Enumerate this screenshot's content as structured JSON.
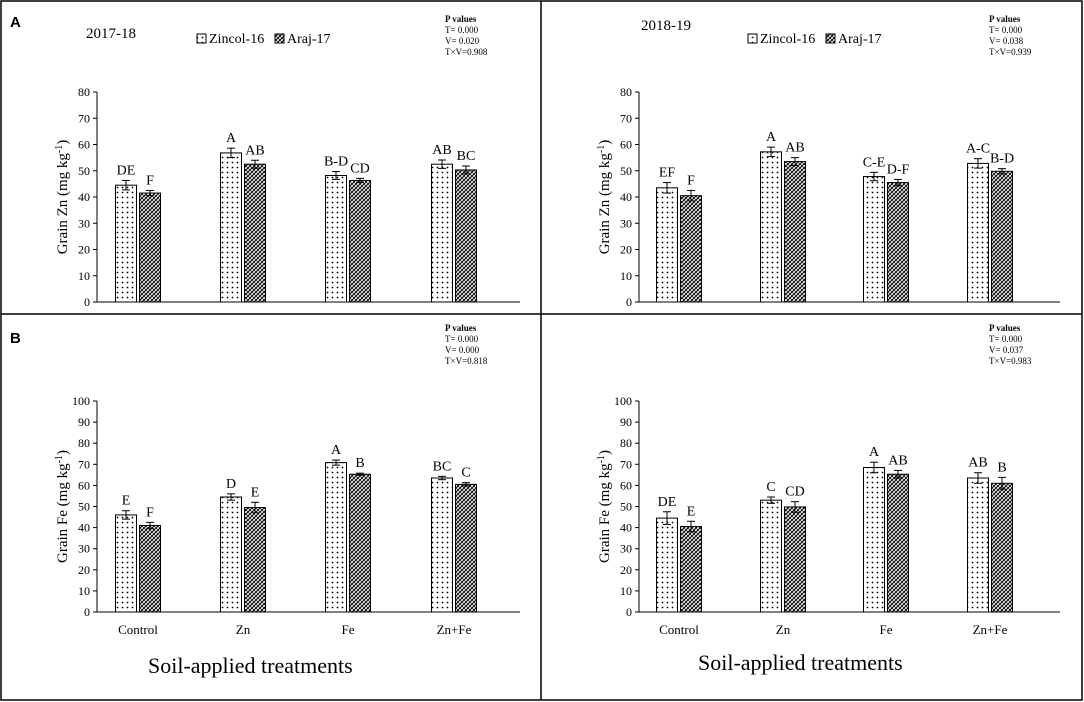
{
  "figure": {
    "row_labels": [
      "A",
      "B"
    ],
    "x_axis_title": "Soil-applied treatments",
    "legend": [
      "Zincol-16",
      "Araj-17"
    ],
    "p_values_heading": "P values",
    "colors": {
      "frame": "#000000",
      "bar_fill": "#ffffff",
      "dots": "#000000",
      "hatch": "#000000"
    }
  },
  "chart_data": [
    {
      "id": "zn-2017",
      "type": "bar",
      "title": "2017-18",
      "xlabel": "",
      "ylabel": "Grain Zn (mg kg-1)",
      "ylim": [
        0,
        80
      ],
      "ytick_step": 10,
      "categories": [
        "Control",
        "Zn",
        "Fe",
        "Zn+Fe"
      ],
      "series": [
        {
          "name": "Zincol-16",
          "values": [
            44.5,
            56.8,
            48.2,
            52.5
          ],
          "errors": [
            1.8,
            1.8,
            1.5,
            1.6
          ],
          "letters": [
            "DE",
            "A",
            "B-D",
            "AB"
          ]
        },
        {
          "name": "Araj-17",
          "values": [
            41.5,
            52.5,
            46.3,
            50.3
          ],
          "errors": [
            1.0,
            1.5,
            0.8,
            1.5
          ],
          "letters": [
            "F",
            "AB",
            "CD",
            "BC"
          ]
        }
      ],
      "p_values": [
        "T= 0.000",
        "V= 0.020",
        "T×V=0.908"
      ]
    },
    {
      "id": "zn-2018",
      "type": "bar",
      "title": "2018-19",
      "xlabel": "",
      "ylabel": "Grain Zn (mg kg-1)",
      "ylim": [
        0,
        80
      ],
      "ytick_step": 10,
      "categories": [
        "Control",
        "Zn",
        "Fe",
        "Zn+Fe"
      ],
      "series": [
        {
          "name": "Zincol-16",
          "values": [
            43.5,
            57.2,
            47.8,
            52.8
          ],
          "errors": [
            2.0,
            1.8,
            1.6,
            1.8
          ],
          "letters": [
            "EF",
            "A",
            "C-E",
            "A-C"
          ]
        },
        {
          "name": "Araj-17",
          "values": [
            40.5,
            53.5,
            45.5,
            49.8
          ],
          "errors": [
            2.0,
            1.5,
            1.2,
            1.0
          ],
          "letters": [
            "F",
            "AB",
            "D-F",
            "B-D"
          ]
        }
      ],
      "p_values": [
        "T= 0.000",
        "V= 0.038",
        "T×V=0.939"
      ]
    },
    {
      "id": "fe-2017",
      "type": "bar",
      "title": "",
      "xlabel": "",
      "ylabel": "Grain Fe (mg kg-1)",
      "ylim": [
        0,
        100
      ],
      "ytick_step": 10,
      "categories": [
        "Control",
        "Zn",
        "Fe",
        "Zn+Fe"
      ],
      "series": [
        {
          "name": "Zincol-16",
          "values": [
            46.0,
            54.5,
            70.8,
            63.5
          ],
          "errors": [
            2.0,
            1.5,
            1.2,
            0.8
          ],
          "letters": [
            "E",
            "D",
            "A",
            "BC"
          ]
        },
        {
          "name": "Araj-17",
          "values": [
            41.0,
            49.5,
            65.3,
            60.5
          ],
          "errors": [
            1.5,
            2.5,
            0.5,
            0.8
          ],
          "letters": [
            "F",
            "E",
            "B",
            "C"
          ]
        }
      ],
      "p_values": [
        "T= 0.000",
        "V= 0.000",
        "T×V=0.818"
      ]
    },
    {
      "id": "fe-2018",
      "type": "bar",
      "title": "",
      "xlabel": "",
      "ylabel": "Grain Fe (mg kg-1)",
      "ylim": [
        0,
        100
      ],
      "ytick_step": 10,
      "categories": [
        "Control",
        "Zn",
        "Fe",
        "Zn+Fe"
      ],
      "series": [
        {
          "name": "Zincol-16",
          "values": [
            44.5,
            53.0,
            68.5,
            63.5
          ],
          "errors": [
            3.0,
            1.5,
            2.5,
            2.5
          ],
          "letters": [
            "DE",
            "C",
            "A",
            "AB"
          ]
        },
        {
          "name": "Araj-17",
          "values": [
            40.5,
            49.8,
            65.3,
            61.0
          ],
          "errors": [
            2.5,
            2.5,
            1.8,
            2.8
          ],
          "letters": [
            "E",
            "CD",
            "AB",
            "B"
          ]
        }
      ],
      "p_values": [
        "T= 0.000",
        "V= 0.037",
        "T×V=0.983"
      ]
    }
  ]
}
